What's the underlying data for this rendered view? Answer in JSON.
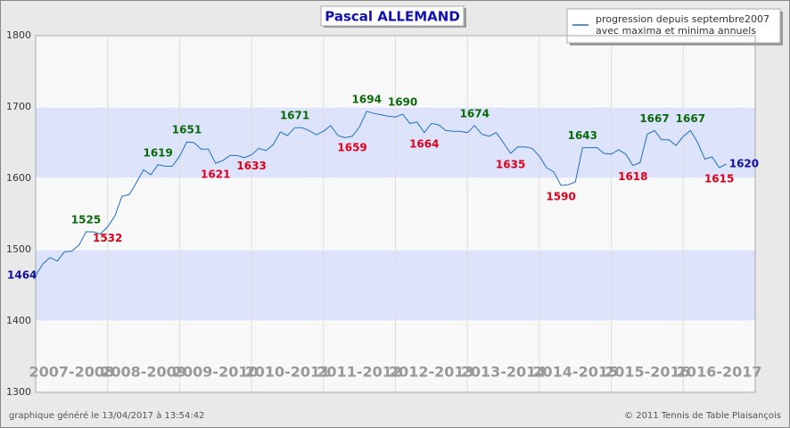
{
  "chart_data": {
    "type": "line",
    "title": "Pascal ALLEMAND",
    "ylim": [
      1300,
      1800
    ],
    "yticks": [
      1300,
      1400,
      1500,
      1600,
      1700,
      1800
    ],
    "seasons": [
      "2007-2008",
      "2008-2009",
      "2009-2010",
      "2010-2011",
      "2011-2012",
      "2012-2013",
      "2013-2014",
      "2014-2015",
      "2015-2016",
      "2016-2017"
    ],
    "series": [
      {
        "name": [
          "progression depuis septembre2007",
          "avec maxima et minima annuels"
        ],
        "color": "#1f6fc5",
        "values": [
          1464,
          1480,
          1489,
          1484,
          1497,
          1498,
          1506,
          1525,
          1525,
          1522,
          1532,
          1547,
          1575,
          1577,
          1594,
          1612,
          1605,
          1619,
          1617,
          1617,
          1631,
          1651,
          1650,
          1641,
          1641,
          1621,
          1625,
          1632,
          1632,
          1629,
          1633,
          1642,
          1639,
          1647,
          1665,
          1660,
          1671,
          1671,
          1667,
          1661,
          1666,
          1674,
          1660,
          1657,
          1659,
          1672,
          1694,
          1691,
          1689,
          1687,
          1686,
          1690,
          1677,
          1679,
          1664,
          1677,
          1675,
          1667,
          1666,
          1666,
          1664,
          1674,
          1662,
          1659,
          1664,
          1650,
          1635,
          1644,
          1644,
          1642,
          1631,
          1615,
          1609,
          1590,
          1591,
          1595,
          1643,
          1643,
          1643,
          1635,
          1634,
          1640,
          1634,
          1618,
          1622,
          1662,
          1667,
          1654,
          1654,
          1646,
          1659,
          1667,
          1650,
          1627,
          1630,
          1615,
          1620
        ]
      }
    ],
    "annotations": [
      {
        "kind": "max",
        "value": 1525
      },
      {
        "kind": "min",
        "value": 1532
      },
      {
        "kind": "max",
        "value": 1619
      },
      {
        "kind": "max",
        "value": 1651
      },
      {
        "kind": "min",
        "value": 1621
      },
      {
        "kind": "min",
        "value": 1633
      },
      {
        "kind": "max",
        "value": 1671
      },
      {
        "kind": "min",
        "value": 1659
      },
      {
        "kind": "max",
        "value": 1694
      },
      {
        "kind": "max",
        "value": 1690
      },
      {
        "kind": "min",
        "value": 1664
      },
      {
        "kind": "max",
        "value": 1674
      },
      {
        "kind": "min",
        "value": 1635
      },
      {
        "kind": "min",
        "value": 1590
      },
      {
        "kind": "max",
        "value": 1643
      },
      {
        "kind": "min",
        "value": 1618
      },
      {
        "kind": "max",
        "value": 1667
      },
      {
        "kind": "max",
        "value": 1667
      },
      {
        "kind": "min",
        "value": 1615
      }
    ],
    "footer_left": "graphique généré le 13/04/2017 à 13:54:42",
    "footer_right": "© 2011 Tennis de Table Plaisançois"
  }
}
